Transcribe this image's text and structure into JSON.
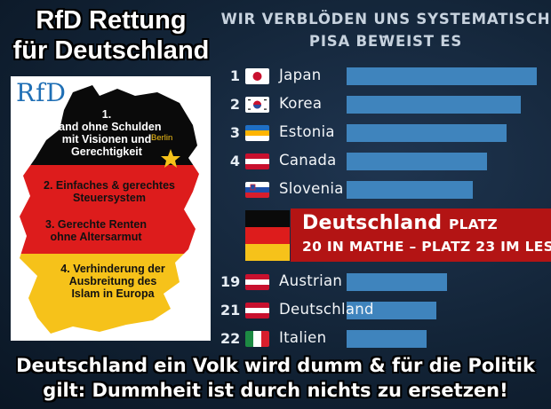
{
  "logo": {
    "title_line1": "RfD Rettung",
    "title_line2": "für Deutschland",
    "map_logo": "RfD",
    "berlin_label": "Berlin"
  },
  "goals": [
    {
      "line1": "1.",
      "line2": "Land ohne Schulden",
      "line3": "mit Visionen und",
      "line4": "Gerechtigkeit"
    },
    {
      "line1": "2. Einfaches & gerechtes",
      "line2": "Steuersystem"
    },
    {
      "line1": "3. Gerechte Renten",
      "line2": "ohne Altersarmut"
    },
    {
      "line1": "4. Verhinderung der",
      "line2": "Ausbreitung des",
      "line3": "Islam in Europa"
    }
  ],
  "headline": {
    "line1": "WIR VERBLÖDEN UNS SYSTEMATISCH –",
    "line2": "PISA BEWEIST ES"
  },
  "ranking": {
    "top": [
      {
        "rank": "1",
        "country": "Japan",
        "flag": "japan-flag",
        "value": 0.95
      },
      {
        "rank": "2",
        "country": "Korea",
        "flag": "korea-flag",
        "value": 0.87
      },
      {
        "rank": "3",
        "country": "Estonia",
        "flag": "estonia-flag",
        "value": 0.8
      },
      {
        "rank": "4",
        "country": "Canada",
        "flag": "canada-flag",
        "value": 0.7
      },
      {
        "rank": "",
        "country": "Slovenia",
        "flag": "slovenia-flag",
        "value": 0.63
      }
    ],
    "bottom": [
      {
        "rank": "19",
        "country": "Austrian",
        "flag": "austria-flag",
        "value": 0.5
      },
      {
        "rank": "21",
        "country": "Deutschland",
        "flag": "austria-flag",
        "value": 0.45
      },
      {
        "rank": "22",
        "country": "Italien",
        "flag": "italy-flag",
        "value": 0.4
      }
    ],
    "highlight_country": "Deutschland",
    "highlight_suffix": "PLATZ",
    "highlight_line2": "20 IN MATHE – PLATZ 23 IM LESEN",
    "bar_color": "#3f84bd",
    "highlight_color": "#b31414"
  },
  "footer": {
    "line1": "Deutschland ein Volk wird dumm & für die Politik",
    "line2": "gilt: Dummheit ist durch nichts zu ersetzen!"
  }
}
